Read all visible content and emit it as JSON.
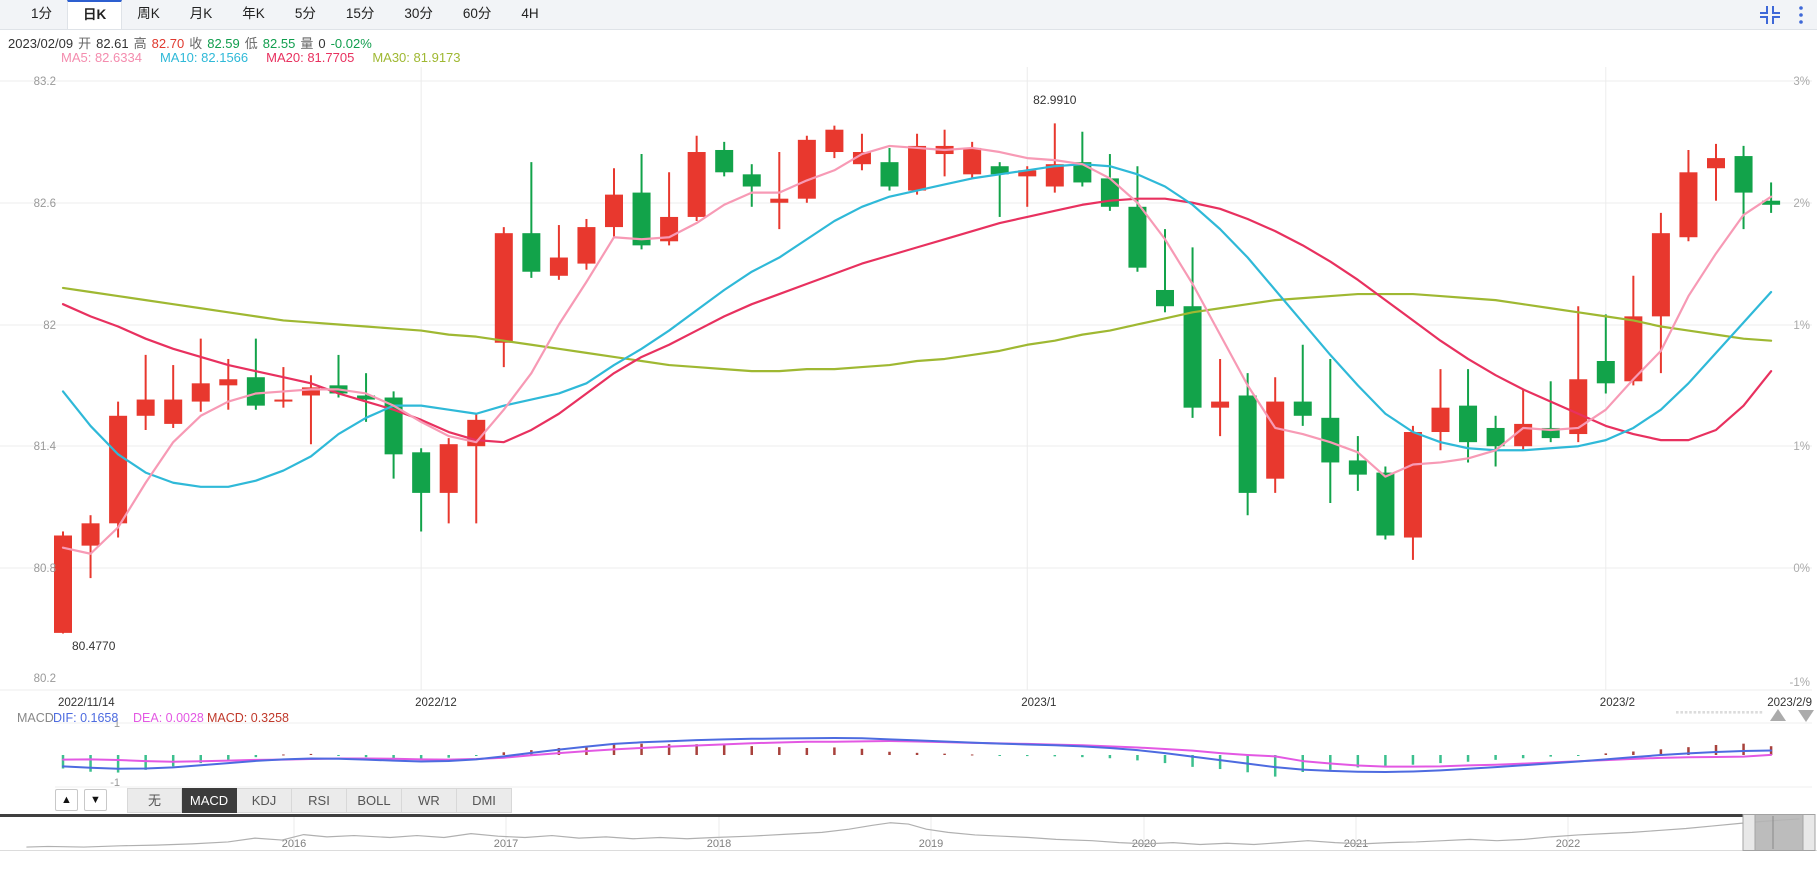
{
  "toolbar": {
    "period_tabs": [
      {
        "label": "1分",
        "active": false
      },
      {
        "label": "日K",
        "active": true
      },
      {
        "label": "周K",
        "active": false
      },
      {
        "label": "月K",
        "active": false
      },
      {
        "label": "年K",
        "active": false
      },
      {
        "label": "5分",
        "active": false
      },
      {
        "label": "15分",
        "active": false
      },
      {
        "label": "30分",
        "active": false
      },
      {
        "label": "60分",
        "active": false
      },
      {
        "label": "4H",
        "active": false
      }
    ],
    "icons": [
      {
        "name": "collapse-icon",
        "color": "#3e68d8"
      },
      {
        "name": "more-icon",
        "color": "#3e68d8"
      }
    ]
  },
  "info_bar": {
    "tokens": [
      {
        "t": "2023/02/09",
        "c": "#333333"
      },
      {
        "t": "开",
        "c": "#666666"
      },
      {
        "t": "82.61",
        "c": "#333333"
      },
      {
        "t": "高",
        "c": "#666666"
      },
      {
        "t": "82.70",
        "c": "#e0392f"
      },
      {
        "t": "收",
        "c": "#666666"
      },
      {
        "t": "82.59",
        "c": "#119e4e"
      },
      {
        "t": "低",
        "c": "#666666"
      },
      {
        "t": "82.55",
        "c": "#119e4e"
      },
      {
        "t": "量",
        "c": "#666666"
      },
      {
        "t": "0",
        "c": "#333333"
      },
      {
        "t": "-0.02%",
        "c": "#119e4e"
      }
    ],
    "ma_tokens": [
      {
        "t": "MA5: 82.6334",
        "c": "#f48cae"
      },
      {
        "t": "MA10: 82.1566",
        "c": "#2fb9d8"
      },
      {
        "t": "MA20: 81.7705",
        "c": "#e8315f"
      },
      {
        "t": "MA30: 81.9173",
        "c": "#9fb832"
      }
    ]
  },
  "chart_data": {
    "type": "candlestick",
    "convention": "red=up, green=down",
    "colors": {
      "up": "#e8382e",
      "down": "#12a34a",
      "ma5": "#f79ab5",
      "ma10": "#2fb9d8",
      "ma20": "#e8315f",
      "ma30": "#9fb832",
      "dif": "#4d6be0",
      "dea": "#e358e3",
      "hist_pos": "#a8423c",
      "hist_neg": "#3cc08e",
      "grid": "#ececec",
      "axis_text": "#999999"
    },
    "y_axis_left_labels": [
      "83.2",
      "82.6",
      "82",
      "81.4",
      "80.8",
      "80.2"
    ],
    "y_axis_right_labels": [
      "3%",
      "2%",
      "1%",
      "1%",
      "0%",
      "-1%"
    ],
    "grid_prices": [
      83.2,
      82.6,
      82.0,
      81.4,
      80.8,
      80.2
    ],
    "x_grid_indices": [
      13,
      35,
      56
    ],
    "x_axis_labels": [
      {
        "label": "2022/11/14",
        "index": 0
      },
      {
        "label": "2022/12",
        "index": 13
      },
      {
        "label": "2023/1",
        "index": 35
      },
      {
        "label": "2023/2",
        "index": 56
      },
      {
        "label": "2023/2/9",
        "index": 62
      }
    ],
    "annotations": [
      {
        "type": "high",
        "text": "82.9910",
        "index": 36
      },
      {
        "type": "low",
        "text": "80.4770",
        "index": 0
      }
    ],
    "dates": [
      "2022/11/14",
      "2022/11/15",
      "2022/11/16",
      "2022/11/17",
      "2022/11/18",
      "2022/11/21",
      "2022/11/22",
      "2022/11/23",
      "2022/11/24",
      "2022/11/25",
      "2022/11/28",
      "2022/11/29",
      "2022/11/30",
      "2022/12/1",
      "2022/12/2",
      "2022/12/5",
      "2022/12/6",
      "2022/12/7",
      "2022/12/8",
      "2022/12/9",
      "2022/12/12",
      "2022/12/13",
      "2022/12/14",
      "2022/12/15",
      "2022/12/16",
      "2022/12/19",
      "2022/12/20",
      "2022/12/21",
      "2022/12/22",
      "2022/12/23",
      "2022/12/26",
      "2022/12/27",
      "2022/12/28",
      "2022/12/29",
      "2022/12/30",
      "2023/1/3",
      "2023/1/4",
      "2023/1/5",
      "2023/1/6",
      "2023/1/9",
      "2023/1/10",
      "2023/1/11",
      "2023/1/12",
      "2023/1/13",
      "2023/1/16",
      "2023/1/17",
      "2023/1/18",
      "2023/1/19",
      "2023/1/20",
      "2023/1/23",
      "2023/1/24",
      "2023/1/25",
      "2023/1/26",
      "2023/1/27",
      "2023/1/30",
      "2023/1/31",
      "2023/2/1",
      "2023/2/2",
      "2023/2/3",
      "2023/2/6",
      "2023/2/7",
      "2023/2/8",
      "2023/2/9"
    ],
    "ohlc": [
      [
        80.48,
        80.98,
        80.477,
        80.96
      ],
      [
        80.91,
        81.06,
        80.75,
        81.02
      ],
      [
        81.02,
        81.62,
        80.95,
        81.55
      ],
      [
        81.55,
        81.85,
        81.48,
        81.63
      ],
      [
        81.51,
        81.8,
        81.49,
        81.63
      ],
      [
        81.62,
        81.93,
        81.57,
        81.71
      ],
      [
        81.7,
        81.83,
        81.58,
        81.73
      ],
      [
        81.74,
        81.93,
        81.58,
        81.6
      ],
      [
        81.62,
        81.79,
        81.59,
        81.63
      ],
      [
        81.65,
        81.75,
        81.41,
        81.69
      ],
      [
        81.7,
        81.85,
        81.64,
        81.66
      ],
      [
        81.65,
        81.76,
        81.52,
        81.63
      ],
      [
        81.64,
        81.67,
        81.24,
        81.36
      ],
      [
        81.37,
        81.39,
        80.98,
        81.17
      ],
      [
        81.17,
        81.44,
        81.02,
        81.41
      ],
      [
        81.4,
        81.56,
        81.02,
        81.53
      ],
      [
        81.91,
        82.48,
        81.79,
        82.45
      ],
      [
        82.45,
        82.8,
        82.23,
        82.26
      ],
      [
        82.24,
        82.49,
        82.22,
        82.33
      ],
      [
        82.3,
        82.52,
        82.27,
        82.48
      ],
      [
        82.48,
        82.77,
        82.43,
        82.64
      ],
      [
        82.65,
        82.84,
        82.37,
        82.39
      ],
      [
        82.41,
        82.75,
        82.39,
        82.53
      ],
      [
        82.53,
        82.93,
        82.51,
        82.85
      ],
      [
        82.86,
        82.9,
        82.73,
        82.75
      ],
      [
        82.74,
        82.79,
        82.58,
        82.68
      ],
      [
        82.6,
        82.85,
        82.47,
        82.62
      ],
      [
        82.62,
        82.93,
        82.6,
        82.91
      ],
      [
        82.85,
        82.98,
        82.82,
        82.96
      ],
      [
        82.79,
        82.94,
        82.76,
        82.85
      ],
      [
        82.8,
        82.87,
        82.66,
        82.68
      ],
      [
        82.66,
        82.94,
        82.64,
        82.88
      ],
      [
        82.84,
        82.96,
        82.73,
        82.88
      ],
      [
        82.74,
        82.9,
        82.72,
        82.87
      ],
      [
        82.78,
        82.8,
        82.53,
        82.74
      ],
      [
        82.73,
        82.78,
        82.58,
        82.76
      ],
      [
        82.68,
        82.991,
        82.65,
        82.79
      ],
      [
        82.8,
        82.95,
        82.68,
        82.7
      ],
      [
        82.72,
        82.84,
        82.56,
        82.58
      ],
      [
        82.58,
        82.78,
        82.26,
        82.28
      ],
      [
        82.17,
        82.47,
        82.06,
        82.09
      ],
      [
        82.09,
        82.38,
        81.54,
        81.59
      ],
      [
        81.59,
        81.83,
        81.45,
        81.62
      ],
      [
        81.65,
        81.76,
        81.06,
        81.17
      ],
      [
        81.24,
        81.74,
        81.17,
        81.62
      ],
      [
        81.62,
        81.9,
        81.5,
        81.55
      ],
      [
        81.54,
        81.83,
        81.12,
        81.32
      ],
      [
        81.33,
        81.45,
        81.18,
        81.26
      ],
      [
        81.27,
        81.3,
        80.94,
        80.96
      ],
      [
        80.95,
        81.5,
        80.84,
        81.47
      ],
      [
        81.47,
        81.78,
        81.38,
        81.59
      ],
      [
        81.6,
        81.78,
        81.32,
        81.42
      ],
      [
        81.49,
        81.55,
        81.3,
        81.4
      ],
      [
        81.4,
        81.68,
        81.38,
        81.51
      ],
      [
        81.49,
        81.72,
        81.42,
        81.44
      ],
      [
        81.46,
        82.09,
        81.42,
        81.73
      ],
      [
        81.82,
        82.05,
        81.66,
        81.71
      ],
      [
        81.72,
        82.24,
        81.7,
        82.04
      ],
      [
        82.04,
        82.55,
        81.76,
        82.45
      ],
      [
        82.43,
        82.86,
        82.41,
        82.75
      ],
      [
        82.77,
        82.89,
        82.61,
        82.82
      ],
      [
        82.83,
        82.88,
        82.47,
        82.65
      ],
      [
        82.61,
        82.7,
        82.55,
        82.59
      ]
    ],
    "ma5": [
      80.9,
      80.87,
      81.0,
      81.22,
      81.42,
      81.55,
      81.62,
      81.66,
      81.67,
      81.68,
      81.68,
      81.66,
      81.6,
      81.52,
      81.45,
      81.42,
      81.58,
      81.76,
      82.0,
      82.21,
      82.43,
      82.42,
      82.43,
      82.5,
      82.59,
      82.65,
      82.65,
      82.71,
      82.76,
      82.84,
      82.88,
      82.87,
      82.86,
      82.87,
      82.85,
      82.82,
      82.81,
      82.79,
      82.72,
      82.6,
      82.42,
      82.2,
      81.95,
      81.7,
      81.49,
      81.46,
      81.42,
      81.37,
      81.25,
      81.31,
      81.32,
      81.34,
      81.38,
      81.49,
      81.48,
      81.49,
      81.58,
      81.73,
      81.87,
      82.14,
      82.35,
      82.54,
      82.63
    ],
    "ma10": [
      81.67,
      81.5,
      81.36,
      81.27,
      81.22,
      81.2,
      81.2,
      81.23,
      81.28,
      81.35,
      81.46,
      81.54,
      81.6,
      81.6,
      81.58,
      81.56,
      81.6,
      81.63,
      81.66,
      81.71,
      81.8,
      81.88,
      81.97,
      82.07,
      82.17,
      82.26,
      82.33,
      82.42,
      82.51,
      82.58,
      82.63,
      82.66,
      82.69,
      82.72,
      82.74,
      82.76,
      82.78,
      82.79,
      82.78,
      82.74,
      82.68,
      82.59,
      82.47,
      82.33,
      82.17,
      82.01,
      81.85,
      81.7,
      81.56,
      81.47,
      81.42,
      81.39,
      81.38,
      81.38,
      81.39,
      81.4,
      81.43,
      81.49,
      81.58,
      81.71,
      81.86,
      82.01,
      82.16
    ],
    "ma20": [
      82.1,
      82.04,
      81.99,
      81.93,
      81.88,
      81.84,
      81.8,
      81.77,
      81.74,
      81.71,
      81.66,
      81.62,
      81.58,
      81.53,
      81.47,
      81.43,
      81.42,
      81.48,
      81.56,
      81.66,
      81.76,
      81.84,
      81.9,
      81.97,
      82.04,
      82.1,
      82.15,
      82.2,
      82.25,
      82.3,
      82.34,
      82.38,
      82.42,
      82.46,
      82.5,
      82.53,
      82.56,
      82.59,
      82.61,
      82.62,
      82.62,
      82.6,
      82.57,
      82.52,
      82.46,
      82.39,
      82.31,
      82.22,
      82.12,
      82.02,
      81.92,
      81.83,
      81.75,
      81.68,
      81.62,
      81.56,
      81.5,
      81.46,
      81.43,
      81.43,
      81.48,
      81.6,
      81.77
    ],
    "ma30": [
      82.18,
      82.16,
      82.14,
      82.12,
      82.1,
      82.08,
      82.06,
      82.04,
      82.02,
      82.01,
      82.0,
      81.99,
      81.98,
      81.97,
      81.95,
      81.94,
      81.92,
      81.9,
      81.88,
      81.86,
      81.84,
      81.82,
      81.8,
      81.79,
      81.78,
      81.77,
      81.77,
      81.78,
      81.78,
      81.79,
      81.8,
      81.82,
      81.83,
      81.85,
      81.87,
      81.9,
      81.92,
      81.95,
      81.97,
      82.0,
      82.03,
      82.06,
      82.08,
      82.1,
      82.12,
      82.13,
      82.14,
      82.15,
      82.15,
      82.15,
      82.14,
      82.13,
      82.12,
      82.1,
      82.08,
      82.06,
      82.04,
      82.02,
      81.99,
      81.97,
      81.95,
      81.93,
      81.92
    ],
    "macd": {
      "label": "MACD",
      "info_tokens": [
        {
          "t": "MACD",
          "c": "#888888"
        },
        {
          "t": "DIF: 0.1658",
          "c": "#4d6be0"
        },
        {
          "t": "DEA: 0.0028",
          "c": "#e358e3"
        },
        {
          "t": "MACD: 0.3258",
          "c": "#c0392b"
        }
      ],
      "y_labels": [
        "1",
        "-1"
      ],
      "dif": [
        -0.42,
        -0.47,
        -0.51,
        -0.5,
        -0.46,
        -0.38,
        -0.3,
        -0.22,
        -0.16,
        -0.13,
        -0.14,
        -0.17,
        -0.21,
        -0.24,
        -0.22,
        -0.16,
        -0.05,
        0.08,
        0.2,
        0.31,
        0.41,
        0.47,
        0.51,
        0.55,
        0.58,
        0.6,
        0.61,
        0.62,
        0.63,
        0.62,
        0.58,
        0.54,
        0.5,
        0.46,
        0.42,
        0.39,
        0.36,
        0.32,
        0.26,
        0.18,
        0.07,
        -0.06,
        -0.19,
        -0.32,
        -0.45,
        -0.54,
        -0.59,
        -0.62,
        -0.63,
        -0.61,
        -0.57,
        -0.51,
        -0.45,
        -0.38,
        -0.31,
        -0.24,
        -0.16,
        -0.08,
        0.0,
        0.06,
        0.11,
        0.15,
        0.1658
      ],
      "hist": [
        -0.5,
        -0.62,
        -0.65,
        -0.55,
        -0.42,
        -0.3,
        -0.18,
        -0.08,
        0.02,
        0.04,
        -0.02,
        -0.08,
        -0.14,
        -0.16,
        -0.1,
        -0.02,
        0.1,
        0.18,
        0.26,
        0.33,
        0.4,
        0.42,
        0.4,
        0.4,
        0.37,
        0.33,
        0.29,
        0.26,
        0.28,
        0.23,
        0.12,
        0.08,
        0.05,
        0.02,
        -0.02,
        -0.04,
        -0.05,
        -0.08,
        -0.12,
        -0.2,
        -0.3,
        -0.44,
        -0.52,
        -0.64,
        -0.8,
        -0.63,
        -0.55,
        -0.46,
        -0.4,
        -0.36,
        -0.3,
        -0.25,
        -0.18,
        -0.12,
        -0.06,
        -0.02,
        0.06,
        0.13,
        0.21,
        0.29,
        0.37,
        0.42,
        0.3258
      ]
    },
    "navigator": {
      "years": [
        "2016",
        "2017",
        "2018",
        "2019",
        "2020",
        "2021",
        "2022"
      ],
      "line": [
        [
          0.008,
          0.06
        ],
        [
          0.02,
          0.08
        ],
        [
          0.04,
          0.06
        ],
        [
          0.06,
          0.1
        ],
        [
          0.08,
          0.12
        ],
        [
          0.1,
          0.16
        ],
        [
          0.12,
          0.22
        ],
        [
          0.135,
          0.34
        ],
        [
          0.15,
          0.28
        ],
        [
          0.162,
          0.45
        ],
        [
          0.175,
          0.38
        ],
        [
          0.19,
          0.42
        ],
        [
          0.21,
          0.36
        ],
        [
          0.225,
          0.42
        ],
        [
          0.24,
          0.36
        ],
        [
          0.255,
          0.48
        ],
        [
          0.27,
          0.4
        ],
        [
          0.285,
          0.36
        ],
        [
          0.3,
          0.42
        ],
        [
          0.315,
          0.34
        ],
        [
          0.33,
          0.38
        ],
        [
          0.345,
          0.32
        ],
        [
          0.36,
          0.36
        ],
        [
          0.375,
          0.32
        ],
        [
          0.39,
          0.36
        ],
        [
          0.41,
          0.4
        ],
        [
          0.43,
          0.46
        ],
        [
          0.45,
          0.52
        ],
        [
          0.465,
          0.62
        ],
        [
          0.478,
          0.74
        ],
        [
          0.488,
          0.82
        ],
        [
          0.498,
          0.78
        ],
        [
          0.508,
          0.62
        ],
        [
          0.52,
          0.52
        ],
        [
          0.535,
          0.44
        ],
        [
          0.55,
          0.4
        ],
        [
          0.565,
          0.36
        ],
        [
          0.58,
          0.3
        ],
        [
          0.6,
          0.26
        ],
        [
          0.615,
          0.2
        ],
        [
          0.63,
          0.16
        ],
        [
          0.645,
          0.2
        ],
        [
          0.66,
          0.14
        ],
        [
          0.675,
          0.18
        ],
        [
          0.69,
          0.14
        ],
        [
          0.705,
          0.2
        ],
        [
          0.72,
          0.26
        ],
        [
          0.735,
          0.2
        ],
        [
          0.75,
          0.16
        ],
        [
          0.765,
          0.2
        ],
        [
          0.78,
          0.22
        ],
        [
          0.795,
          0.26
        ],
        [
          0.81,
          0.3
        ],
        [
          0.825,
          0.26
        ],
        [
          0.84,
          0.3
        ],
        [
          0.855,
          0.38
        ],
        [
          0.87,
          0.44
        ],
        [
          0.885,
          0.48
        ],
        [
          0.9,
          0.52
        ],
        [
          0.915,
          0.58
        ],
        [
          0.93,
          0.64
        ],
        [
          0.945,
          0.72
        ],
        [
          0.96,
          0.8
        ],
        [
          0.972,
          0.86
        ],
        [
          0.982,
          0.9
        ],
        [
          0.993,
          0.94
        ]
      ]
    }
  },
  "indicator_tabs": {
    "up_button": "▲",
    "down_button": "▼",
    "tabs": [
      {
        "label": "无",
        "active": false
      },
      {
        "label": "MACD",
        "active": true
      },
      {
        "label": "KDJ",
        "active": false
      },
      {
        "label": "RSI",
        "active": false
      },
      {
        "label": "BOLL",
        "active": false
      },
      {
        "label": "WR",
        "active": false
      },
      {
        "label": "DMI",
        "active": false
      }
    ]
  }
}
